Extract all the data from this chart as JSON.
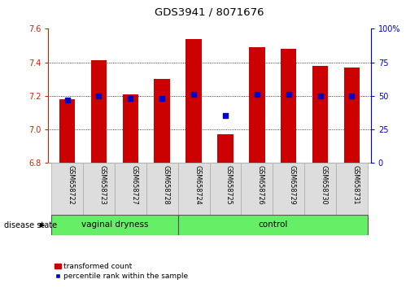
{
  "title": "GDS3941 / 8071676",
  "samples": [
    "GSM658722",
    "GSM658723",
    "GSM658727",
    "GSM658728",
    "GSM658724",
    "GSM658725",
    "GSM658726",
    "GSM658729",
    "GSM658730",
    "GSM658731"
  ],
  "red_values": [
    7.18,
    7.41,
    7.21,
    7.3,
    7.54,
    6.97,
    7.49,
    7.48,
    7.38,
    7.37
  ],
  "blue_percentiles": [
    47,
    50,
    48,
    48,
    51,
    35,
    51,
    51,
    50,
    50
  ],
  "ylim_left": [
    6.8,
    7.6
  ],
  "ylim_right": [
    0,
    100
  ],
  "yticks_left": [
    6.8,
    7.0,
    7.2,
    7.4,
    7.6
  ],
  "yticks_right": [
    0,
    25,
    50,
    75,
    100
  ],
  "group_labels": [
    "vaginal dryness",
    "control"
  ],
  "group_boundaries": [
    0,
    4,
    10
  ],
  "disease_state_label": "disease state",
  "legend_red": "transformed count",
  "legend_blue": "percentile rank within the sample",
  "bar_color": "#CC0000",
  "dot_color": "#0000CC",
  "bar_width": 0.5,
  "left_axis_color": "#CC2200",
  "right_axis_color": "#0000CC",
  "group_color": "#66EE66",
  "sample_box_color": "#DDDDDD",
  "grid_yticks": [
    7.0,
    7.2,
    7.4
  ]
}
